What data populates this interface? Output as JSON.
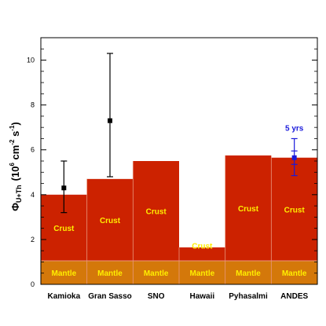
{
  "chart_data": {
    "type": "bar",
    "categories": [
      "Kamioka",
      "Gran Sasso",
      "SNO",
      "Hawaii",
      "Pyhasalmi",
      "ANDES"
    ],
    "series": [
      {
        "name": "Mantle",
        "values": [
          1.05,
          1.05,
          1.05,
          1.05,
          1.05,
          1.05
        ]
      },
      {
        "name": "Crust",
        "values": [
          2.95,
          3.65,
          4.45,
          0.6,
          4.7,
          4.6
        ]
      }
    ],
    "totals": [
      4.0,
      4.7,
      5.5,
      1.65,
      5.75,
      5.65
    ],
    "measurements": [
      {
        "category": "Kamioka",
        "value": 4.3,
        "err_low": 3.2,
        "err_high": 5.5,
        "color": "#000000"
      },
      {
        "category": "Gran Sasso",
        "value": 7.3,
        "err_low": 4.8,
        "err_high": 10.3,
        "color": "#000000"
      },
      {
        "category": "ANDES",
        "value": 5.65,
        "err_low": 4.85,
        "err_high": 6.5,
        "inner_low": 5.35,
        "inner_high": 5.95,
        "color": "#1a1adb"
      }
    ],
    "annotation": {
      "category": "ANDES",
      "text": "5 yrs",
      "color": "#1a1adb"
    },
    "band_labels": {
      "crust": "Crust",
      "mantle": "Mantle"
    },
    "ylabel_parts": {
      "main": "Φ",
      "sub": "U+Th",
      "unit_open": "(10",
      "exp1": "6",
      "mid": " cm",
      "exp2": "-2",
      "mid2": " s",
      "exp3": "-1",
      "close": ")"
    },
    "ylim": [
      0,
      11
    ],
    "yticks": [
      0,
      2,
      4,
      6,
      8,
      10
    ],
    "colors": {
      "crust": "#cc2200",
      "mantle": "#d4780a",
      "band_text": "#ffee00",
      "divider": "#e8967e"
    }
  }
}
